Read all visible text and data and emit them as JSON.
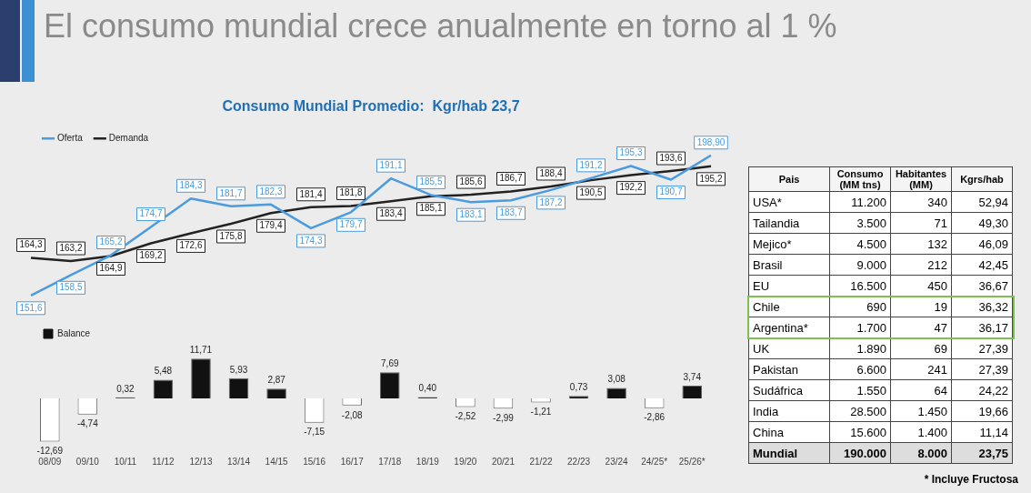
{
  "chart_data": [
    {
      "type": "line",
      "title": "El consumo mundial crece anualmente en torno al 1 %",
      "subtitle": "Consumo Mundial Promedio:  Kgr/hab 23,7",
      "categories": [
        null,
        null,
        null,
        null,
        null,
        null,
        null,
        null,
        null,
        null,
        null,
        null,
        null,
        null,
        null,
        null,
        null,
        null
      ],
      "series": [
        {
          "name": "Oferta",
          "color": "#4a9be0",
          "values": [
            151.6,
            158.5,
            165.2,
            174.7,
            184.3,
            181.7,
            182.3,
            174.3,
            179.7,
            191.1,
            185.5,
            183.1,
            183.7,
            187.2,
            191.2,
            195.3,
            190.7,
            198.9
          ],
          "value_labels": [
            "151,6",
            "158,5",
            "165,2",
            "174,7",
            "184,3",
            "181,7",
            "182,3",
            "174,3",
            "179,7",
            "191,1",
            "185,5",
            "183,1",
            "183,7",
            "187,2",
            "191,2",
            "195,3",
            "190,7",
            "198,90"
          ]
        },
        {
          "name": "Demanda",
          "color": "#222222",
          "values": [
            164.3,
            163.2,
            164.9,
            169.2,
            172.6,
            175.8,
            179.4,
            181.4,
            181.8,
            183.4,
            185.1,
            185.6,
            186.7,
            188.4,
            190.5,
            192.2,
            193.6,
            195.2
          ],
          "value_labels": [
            "164,3",
            "163,2",
            "164,9",
            "169,2",
            "172,6",
            "175,8",
            "179,4",
            "181,4",
            "181,8",
            "183,4",
            "185,1",
            "185,6",
            "186,7",
            "188,4",
            "190,5",
            "192,2",
            "193,6",
            "195,2"
          ]
        }
      ],
      "legend": "top left",
      "grid": false,
      "marker": "none",
      "tick_labels": false
    },
    {
      "type": "bar",
      "categories": [
        "08/09",
        "09/10",
        "10/11",
        "11/12",
        "12/13",
        "13/14",
        "14/15",
        "15/16",
        "16/17",
        "17/18",
        "18/19",
        "19/20",
        "20/21",
        "21/22",
        "22/23",
        "23/24",
        "24/25*",
        "25/26*"
      ],
      "series": [
        {
          "name": "Balance",
          "values": [
            -12.69,
            -4.74,
            0.32,
            5.48,
            11.71,
            5.93,
            2.87,
            -7.15,
            -2.08,
            7.69,
            0.4,
            -2.52,
            -2.99,
            -1.21,
            0.73,
            3.08,
            -2.86,
            3.74
          ],
          "colors": [
            "#ffffff",
            "#ffffff",
            "#111111",
            "#111111",
            "#111111",
            "#111111",
            "#111111",
            "#ffffff",
            "#ffffff",
            "#111111",
            "#111111",
            "#ffffff",
            "#ffffff",
            "#ffffff",
            "#111111",
            "#111111",
            "#ffffff",
            "#111111"
          ],
          "value_labels": [
            "-12,69",
            "-4,74",
            "0,32",
            "5,48",
            "11,71",
            "5,93",
            "2,87",
            "-7,15",
            "-2,08",
            "7,69",
            "0,40",
            "-2,52",
            "-2,99",
            "-1,21",
            "0,73",
            "3,08",
            "-2,86",
            "3,74"
          ]
        }
      ],
      "legend": "top left",
      "grid": false,
      "tick_labels": "x"
    },
    {
      "type": "other",
      "ylabel": "Pais",
      "categories": [
        "Consumo (MM tns)",
        "Habitantes (MM)",
        "Kgrs/hab"
      ],
      "y_categories": [
        "USA*",
        "Tailandia",
        "Mejico*",
        "Brasil",
        "EU",
        "Chile",
        "Argentina*",
        "UK",
        "Pakistan",
        "Sudáfrica",
        "India",
        "China",
        "Mundial"
      ],
      "cell_labels": [
        [
          "11.200",
          "340",
          "52,94"
        ],
        [
          "3.500",
          "71",
          "49,30"
        ],
        [
          "4.500",
          "132",
          "46,09"
        ],
        [
          "9.000",
          "212",
          "42,45"
        ],
        [
          "16.500",
          "450",
          "36,67"
        ],
        [
          "690",
          "19",
          "36,32"
        ],
        [
          "1.700",
          "47",
          "36,17"
        ],
        [
          "1.890",
          "69",
          "27,39"
        ],
        [
          "6.600",
          "241",
          "27,39"
        ],
        [
          "1.550",
          "64",
          "24,22"
        ],
        [
          "28.500",
          "1.450",
          "19,66"
        ],
        [
          "15.600",
          "1.400",
          "11,14"
        ],
        [
          "190.000",
          "8.000",
          "23,75"
        ]
      ],
      "annotations": [
        "* Incluye Fructosa"
      ]
    }
  ]
}
